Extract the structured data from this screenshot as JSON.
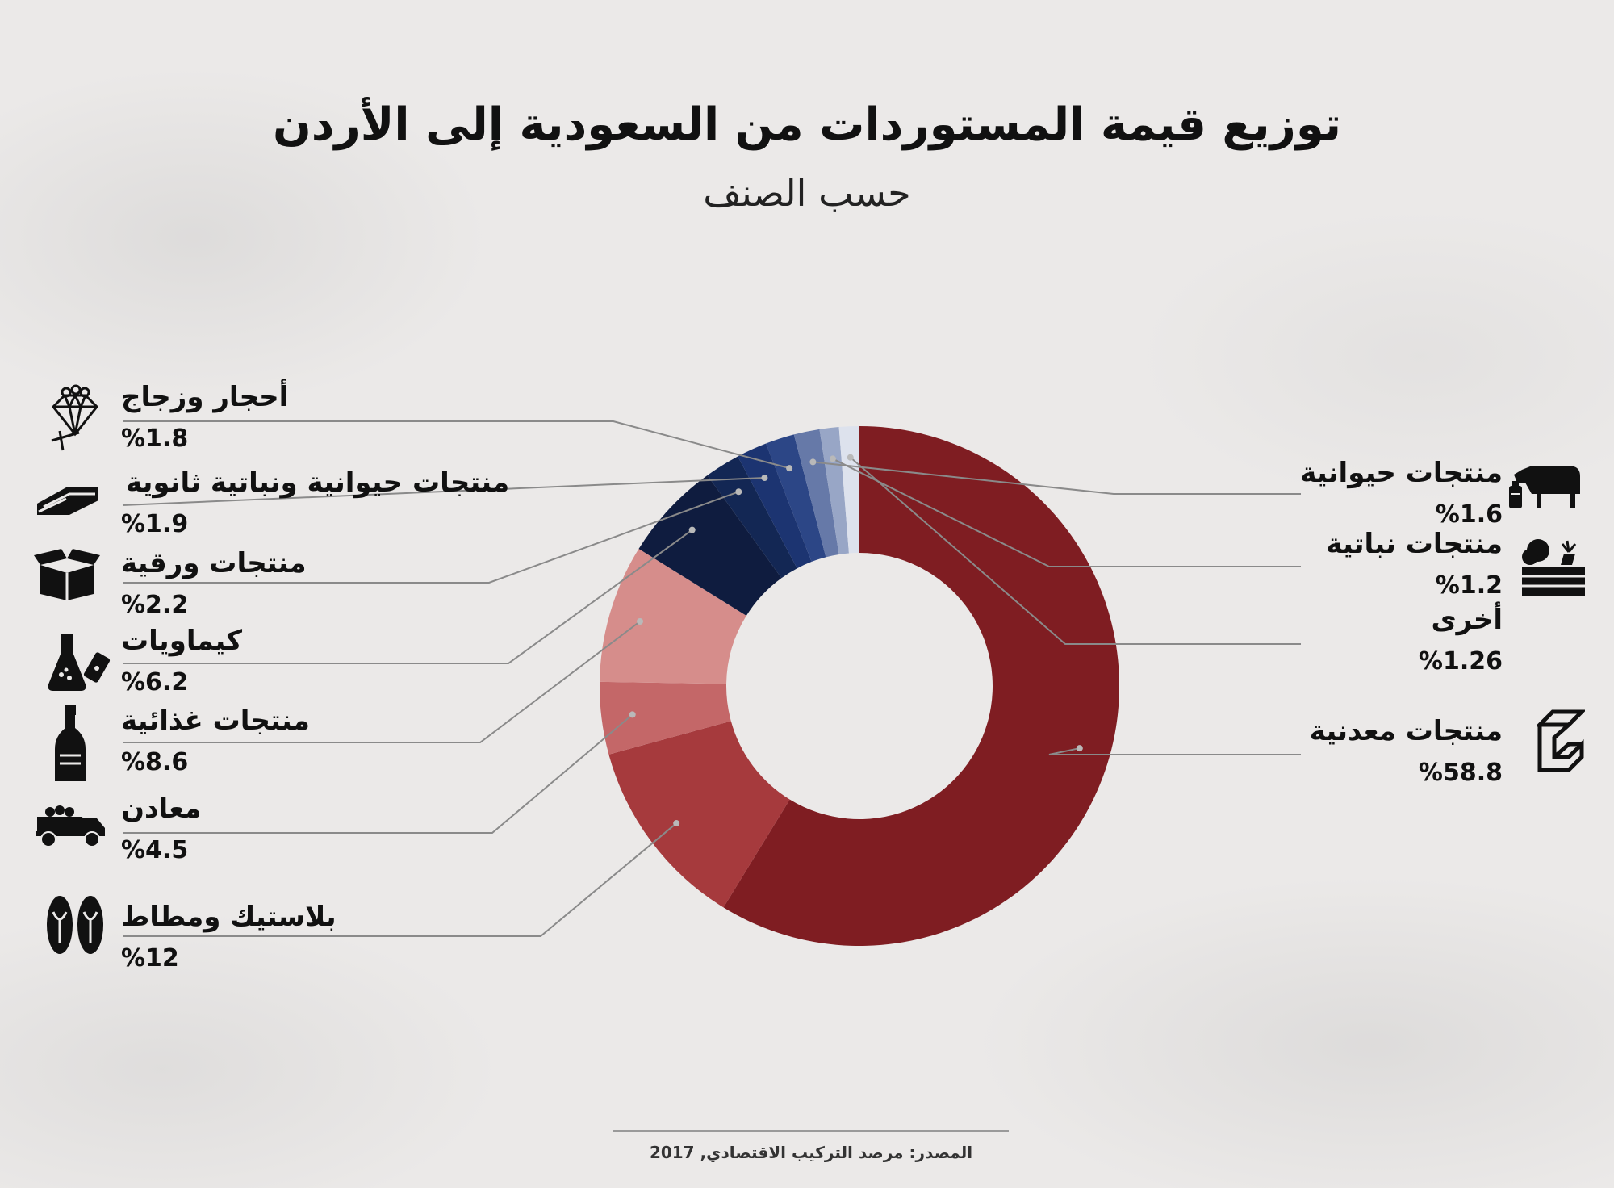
{
  "title": "توزيع قيمة المستوردات من السعودية إلى الأردن",
  "subtitle": "حسب الصنف",
  "source": "المصدر: مرصد التركيب الاقتصادي, 2017",
  "chart_data": {
    "type": "pie",
    "title": "توزيع قيمة المستوردات من السعودية إلى الأردن",
    "subtitle": "حسب الصنف",
    "categories": [
      "منتجات معدنية",
      "بلاستيك ومطاط",
      "معادن",
      "منتجات غذائية",
      "كيماويات",
      "منتجات ورقية",
      "منتجات حيوانية ونباتية ثانوية",
      "أحجار وزجاج",
      "منتجات حيوانية",
      "منتجات نباتية",
      "أخرى"
    ],
    "values": [
      58.8,
      12,
      4.5,
      8.6,
      6.2,
      2.2,
      1.9,
      1.8,
      1.6,
      1.2,
      1.26
    ],
    "colors": [
      "#7f1d22",
      "#a63a3d",
      "#c46768",
      "#d68d8b",
      "#0f1c3f",
      "#132754",
      "#1c3471",
      "#2c4686",
      "#6679a8",
      "#98a6c6",
      "#dde2ed"
    ],
    "labels": {
      "minerals_products": {
        "name": "منتجات معدنية",
        "pct": "%58.8"
      },
      "plastics": {
        "name": "بلاستيك ومطاط",
        "pct": "%12"
      },
      "metals": {
        "name": "معادن",
        "pct": "%4.5"
      },
      "food": {
        "name": "منتجات غذائية",
        "pct": "%8.6"
      },
      "chemicals": {
        "name": "كيماويات",
        "pct": "%6.2"
      },
      "paper": {
        "name": "منتجات ورقية",
        "pct": "%2.2"
      },
      "animal_veg_secondary": {
        "name": "منتجات حيوانية ونباتية ثانوية",
        "pct": "%1.9"
      },
      "stone_glass": {
        "name": "أحجار وزجاج",
        "pct": "%1.8"
      },
      "animal": {
        "name": "منتجات حيوانية",
        "pct": "%1.6"
      },
      "vegetable": {
        "name": "منتجات نباتية",
        "pct": "%1.2"
      },
      "other": {
        "name": "أخرى",
        "pct": "%1.26"
      }
    },
    "legend": "labels with leader lines on both sides"
  }
}
